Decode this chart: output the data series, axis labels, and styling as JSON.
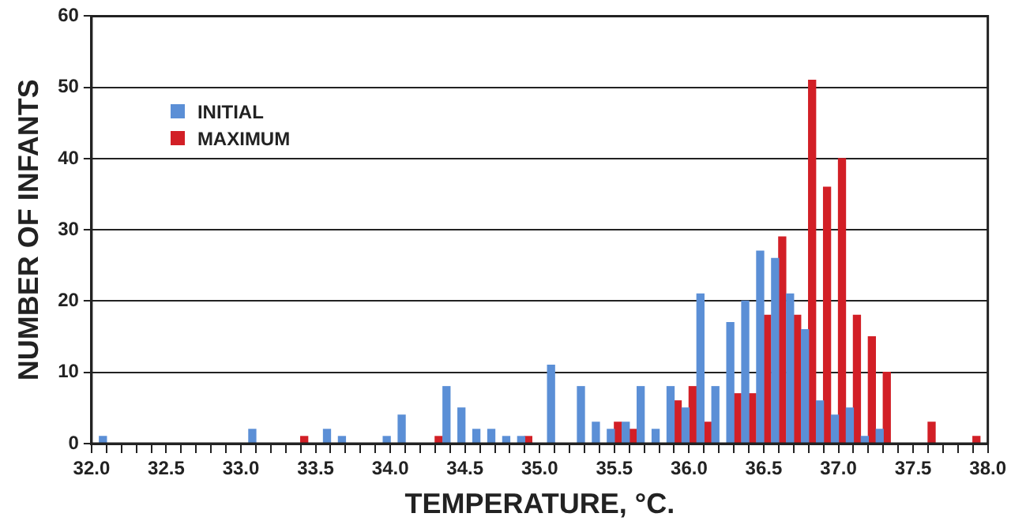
{
  "chart_data": {
    "type": "bar",
    "xlabel": "TEMPERATURE, °C.",
    "ylabel": "NUMBER OF INFANTS",
    "categories": [
      "32.0",
      null,
      null,
      null,
      null,
      "32.5",
      null,
      null,
      null,
      null,
      "33.0",
      null,
      null,
      null,
      null,
      "33.5",
      null,
      null,
      null,
      null,
      "34.0",
      null,
      null,
      null,
      null,
      "34.5",
      null,
      null,
      null,
      null,
      "35.0",
      null,
      null,
      null,
      null,
      "35.5",
      null,
      null,
      null,
      null,
      "36.0",
      null,
      null,
      null,
      null,
      "36.5",
      null,
      null,
      null,
      null,
      "37.0",
      null,
      null,
      null,
      null,
      "37.5",
      null,
      null,
      null,
      null,
      "38.0"
    ],
    "series": [
      {
        "name": "INITIAL",
        "color": "#5b8fd6",
        "values": [
          0,
          1,
          0,
          0,
          0,
          0,
          0,
          0,
          0,
          0,
          0,
          2,
          0,
          0,
          0,
          0,
          2,
          1,
          0,
          0,
          1,
          4,
          0,
          0,
          8,
          5,
          2,
          2,
          1,
          1,
          0,
          11,
          0,
          8,
          3,
          2,
          3,
          8,
          2,
          8,
          5,
          21,
          8,
          17,
          20,
          27,
          26,
          21,
          16,
          6,
          4,
          5,
          1,
          2,
          0,
          0,
          0,
          0,
          0,
          0,
          0
        ]
      },
      {
        "name": "MAXIMUM",
        "color": "#d21f26",
        "values": [
          0,
          0,
          0,
          0,
          0,
          0,
          0,
          0,
          0,
          0,
          0,
          0,
          0,
          0,
          1,
          0,
          0,
          0,
          0,
          0,
          0,
          0,
          0,
          1,
          0,
          0,
          0,
          0,
          0,
          1,
          0,
          0,
          0,
          0,
          0,
          3,
          2,
          0,
          0,
          6,
          8,
          3,
          0,
          7,
          7,
          18,
          29,
          18,
          51,
          36,
          40,
          18,
          15,
          10,
          0,
          0,
          3,
          0,
          0,
          1,
          0
        ]
      }
    ],
    "ylim": [
      0,
      60
    ],
    "yticks": [
      0,
      10,
      20,
      30,
      40,
      50,
      60
    ],
    "grid": "y",
    "legend": "top left"
  }
}
